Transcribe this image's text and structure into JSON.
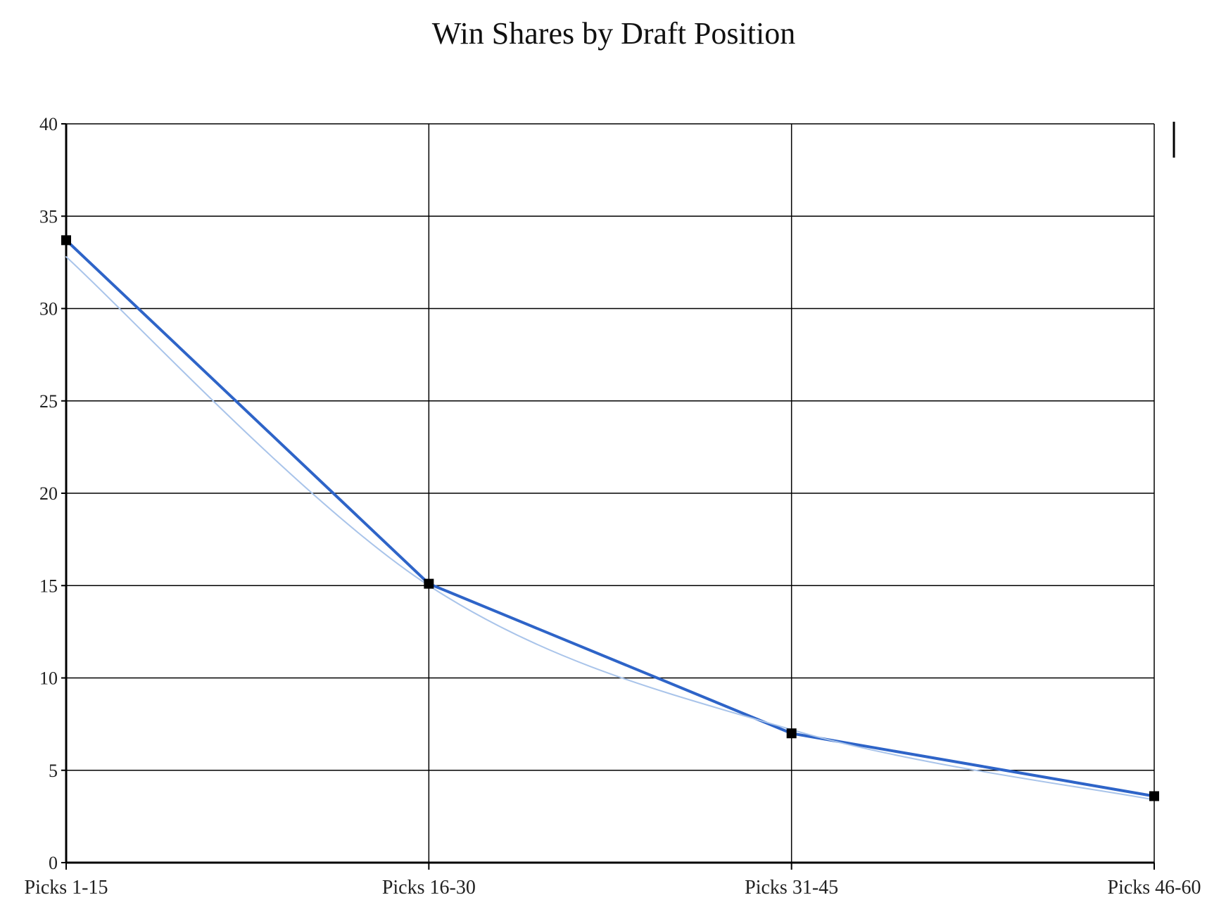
{
  "chart_data": {
    "type": "line",
    "title": "Win Shares by Draft Position",
    "xlabel": "",
    "ylabel": "",
    "categories": [
      "Picks 1-15",
      "Picks 16-30",
      "Picks 31-45",
      "Picks 46-60"
    ],
    "series": [
      {
        "values": [
          33.7,
          15.1,
          7.0,
          3.6
        ],
        "color": "#2e64c8",
        "markers": true
      },
      {
        "values": [
          32.8,
          15.0,
          7.2,
          3.4
        ],
        "color": "#a9c4ea",
        "smooth": true,
        "markers": false
      }
    ],
    "ylim": [
      0,
      40
    ],
    "yticks": [
      0,
      5,
      10,
      15,
      20,
      25,
      30,
      35,
      40
    ],
    "grid": true,
    "legend": "none"
  }
}
